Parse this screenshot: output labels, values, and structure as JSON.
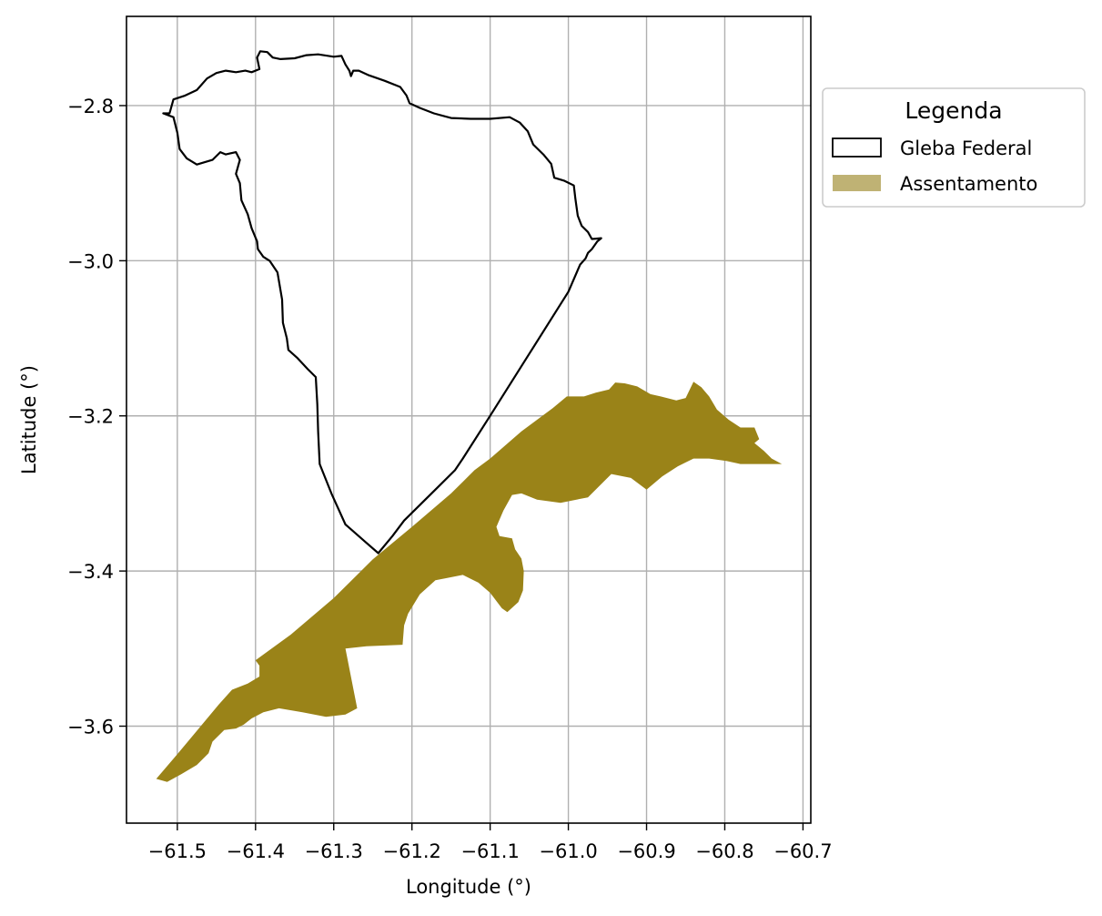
{
  "chart_data": {
    "type": "map",
    "xlabel": "Longitude (°)",
    "ylabel": "Latitude (°)",
    "xlim": [
      -61.565,
      -60.69
    ],
    "ylim": [
      -3.725,
      -2.685
    ],
    "x_ticks": [
      -61.5,
      -61.4,
      -61.3,
      -61.2,
      -61.1,
      -61.0,
      -60.9,
      -60.8,
      -60.7
    ],
    "x_tick_labels": [
      "−61.5",
      "−61.4",
      "−61.3",
      "−61.2",
      "−61.1",
      "−61.0",
      "−60.9",
      "−60.8",
      "−60.7"
    ],
    "y_ticks": [
      -2.8,
      -3.0,
      -3.2,
      -3.4,
      -3.6
    ],
    "y_tick_labels": [
      "−2.8",
      "−3.0",
      "−3.2",
      "−3.4",
      "−3.6"
    ],
    "grid": true,
    "legend": {
      "title": "Legenda",
      "position": "outside-right-top",
      "entries": [
        {
          "label": "Gleba Federal",
          "style": "outline",
          "edge_color": "#000000",
          "fill_color": "#ffffff"
        },
        {
          "label": "Assentamento",
          "style": "fill",
          "fill_color": "#bfb274"
        }
      ]
    },
    "colors": {
      "gleba_outline": "#000000",
      "assentamento_fill": "#9a8318",
      "grid": "#b0b0b0"
    },
    "series": [
      {
        "name": "Gleba Federal",
        "kind": "polygon-outline",
        "coords": [
          [
            -61.51,
            -2.81
          ],
          [
            -61.505,
            -2.792
          ],
          [
            -61.49,
            -2.787
          ],
          [
            -61.475,
            -2.78
          ],
          [
            -61.462,
            -2.765
          ],
          [
            -61.45,
            -2.758
          ],
          [
            -61.438,
            -2.755
          ],
          [
            -61.425,
            -2.757
          ],
          [
            -61.413,
            -2.755
          ],
          [
            -61.405,
            -2.757
          ],
          [
            -61.395,
            -2.753
          ],
          [
            -61.398,
            -2.738
          ],
          [
            -61.394,
            -2.73
          ],
          [
            -61.385,
            -2.731
          ],
          [
            -61.378,
            -2.738
          ],
          [
            -61.368,
            -2.74
          ],
          [
            -61.35,
            -2.739
          ],
          [
            -61.335,
            -2.735
          ],
          [
            -61.32,
            -2.734
          ],
          [
            -61.3,
            -2.737
          ],
          [
            -61.29,
            -2.736
          ],
          [
            -61.285,
            -2.747
          ],
          [
            -61.28,
            -2.755
          ],
          [
            -61.278,
            -2.762
          ],
          [
            -61.275,
            -2.755
          ],
          [
            -61.268,
            -2.755
          ],
          [
            -61.255,
            -2.761
          ],
          [
            -61.235,
            -2.768
          ],
          [
            -61.215,
            -2.776
          ],
          [
            -61.207,
            -2.787
          ],
          [
            -61.203,
            -2.797
          ],
          [
            -61.19,
            -2.803
          ],
          [
            -61.172,
            -2.81
          ],
          [
            -61.15,
            -2.816
          ],
          [
            -61.125,
            -2.817
          ],
          [
            -61.1,
            -2.817
          ],
          [
            -61.075,
            -2.815
          ],
          [
            -61.062,
            -2.822
          ],
          [
            -61.052,
            -2.833
          ],
          [
            -61.045,
            -2.85
          ],
          [
            -61.032,
            -2.863
          ],
          [
            -61.022,
            -2.875
          ],
          [
            -61.018,
            -2.893
          ],
          [
            -61.005,
            -2.897
          ],
          [
            -60.993,
            -2.903
          ],
          [
            -60.991,
            -2.92
          ],
          [
            -60.988,
            -2.942
          ],
          [
            -60.983,
            -2.955
          ],
          [
            -60.975,
            -2.963
          ],
          [
            -60.97,
            -2.972
          ],
          [
            -60.958,
            -2.971
          ],
          [
            -60.963,
            -2.975
          ],
          [
            -60.97,
            -2.985
          ],
          [
            -60.975,
            -2.99
          ],
          [
            -60.978,
            -2.997
          ],
          [
            -60.985,
            -3.005
          ],
          [
            -61.0,
            -3.04
          ],
          [
            -61.05,
            -3.12
          ],
          [
            -61.1,
            -3.2
          ],
          [
            -61.135,
            -3.255
          ],
          [
            -61.145,
            -3.27
          ],
          [
            -61.17,
            -3.295
          ],
          [
            -61.19,
            -3.315
          ],
          [
            -61.21,
            -3.335
          ],
          [
            -61.225,
            -3.355
          ],
          [
            -61.243,
            -3.377
          ],
          [
            -61.26,
            -3.362
          ],
          [
            -61.285,
            -3.34
          ],
          [
            -61.303,
            -3.3
          ],
          [
            -61.318,
            -3.262
          ],
          [
            -61.32,
            -3.22
          ],
          [
            -61.321,
            -3.185
          ],
          [
            -61.323,
            -3.15
          ],
          [
            -61.333,
            -3.14
          ],
          [
            -61.347,
            -3.125
          ],
          [
            -61.358,
            -3.115
          ],
          [
            -61.36,
            -3.1
          ],
          [
            -61.365,
            -3.08
          ],
          [
            -61.366,
            -3.05
          ],
          [
            -61.372,
            -3.015
          ],
          [
            -61.382,
            -3.0
          ],
          [
            -61.39,
            -2.995
          ],
          [
            -61.397,
            -2.985
          ],
          [
            -61.398,
            -2.975
          ],
          [
            -61.405,
            -2.958
          ],
          [
            -61.41,
            -2.94
          ],
          [
            -61.418,
            -2.922
          ],
          [
            -61.42,
            -2.9
          ],
          [
            -61.425,
            -2.888
          ],
          [
            -61.42,
            -2.87
          ],
          [
            -61.425,
            -2.86
          ],
          [
            -61.438,
            -2.863
          ],
          [
            -61.445,
            -2.86
          ],
          [
            -61.455,
            -2.87
          ],
          [
            -61.475,
            -2.876
          ],
          [
            -61.488,
            -2.868
          ],
          [
            -61.497,
            -2.856
          ],
          [
            -61.5,
            -2.835
          ],
          [
            -61.505,
            -2.815
          ],
          [
            -61.518,
            -2.81
          ],
          [
            -61.51,
            -2.81
          ]
        ]
      },
      {
        "name": "Assentamento",
        "kind": "polygon-fill",
        "coords": [
          [
            -61.527,
            -3.668
          ],
          [
            -61.5,
            -3.636
          ],
          [
            -61.47,
            -3.6
          ],
          [
            -61.447,
            -3.572
          ],
          [
            -61.43,
            -3.553
          ],
          [
            -61.41,
            -3.545
          ],
          [
            -61.395,
            -3.536
          ],
          [
            -61.395,
            -3.522
          ],
          [
            -61.4,
            -3.515
          ],
          [
            -61.355,
            -3.482
          ],
          [
            -61.3,
            -3.435
          ],
          [
            -61.25,
            -3.385
          ],
          [
            -61.2,
            -3.343
          ],
          [
            -61.15,
            -3.3
          ],
          [
            -61.12,
            -3.27
          ],
          [
            -61.1,
            -3.255
          ],
          [
            -61.06,
            -3.22
          ],
          [
            -61.02,
            -3.19
          ],
          [
            -61.002,
            -3.175
          ],
          [
            -60.98,
            -3.175
          ],
          [
            -60.965,
            -3.17
          ],
          [
            -60.948,
            -3.166
          ],
          [
            -60.94,
            -3.157
          ],
          [
            -60.928,
            -3.158
          ],
          [
            -60.912,
            -3.162
          ],
          [
            -60.895,
            -3.172
          ],
          [
            -60.882,
            -3.175
          ],
          [
            -60.862,
            -3.18
          ],
          [
            -60.85,
            -3.177
          ],
          [
            -60.84,
            -3.156
          ],
          [
            -60.83,
            -3.163
          ],
          [
            -60.82,
            -3.175
          ],
          [
            -60.81,
            -3.192
          ],
          [
            -60.795,
            -3.205
          ],
          [
            -60.78,
            -3.215
          ],
          [
            -60.762,
            -3.215
          ],
          [
            -60.756,
            -3.23
          ],
          [
            -60.762,
            -3.235
          ],
          [
            -60.75,
            -3.245
          ],
          [
            -60.74,
            -3.255
          ],
          [
            -60.727,
            -3.262
          ],
          [
            -60.75,
            -3.262
          ],
          [
            -60.78,
            -3.262
          ],
          [
            -60.798,
            -3.258
          ],
          [
            -60.82,
            -3.255
          ],
          [
            -60.84,
            -3.255
          ],
          [
            -60.86,
            -3.265
          ],
          [
            -60.88,
            -3.278
          ],
          [
            -60.9,
            -3.295
          ],
          [
            -60.92,
            -3.28
          ],
          [
            -60.945,
            -3.275
          ],
          [
            -60.96,
            -3.29
          ],
          [
            -60.975,
            -3.305
          ],
          [
            -61.01,
            -3.312
          ],
          [
            -61.04,
            -3.308
          ],
          [
            -61.06,
            -3.3
          ],
          [
            -61.072,
            -3.302
          ],
          [
            -61.083,
            -3.322
          ],
          [
            -61.092,
            -3.343
          ],
          [
            -61.088,
            -3.355
          ],
          [
            -61.072,
            -3.358
          ],
          [
            -61.068,
            -3.372
          ],
          [
            -61.06,
            -3.384
          ],
          [
            -61.057,
            -3.4
          ],
          [
            -61.058,
            -3.425
          ],
          [
            -61.064,
            -3.44
          ],
          [
            -61.078,
            -3.453
          ],
          [
            -61.085,
            -3.448
          ],
          [
            -61.1,
            -3.428
          ],
          [
            -61.115,
            -3.415
          ],
          [
            -61.135,
            -3.405
          ],
          [
            -61.17,
            -3.412
          ],
          [
            -61.19,
            -3.43
          ],
          [
            -61.205,
            -3.455
          ],
          [
            -61.21,
            -3.47
          ],
          [
            -61.212,
            -3.495
          ],
          [
            -61.258,
            -3.497
          ],
          [
            -61.285,
            -3.5
          ],
          [
            -61.27,
            -3.577
          ],
          [
            -61.285,
            -3.585
          ],
          [
            -61.31,
            -3.588
          ],
          [
            -61.34,
            -3.582
          ],
          [
            -61.37,
            -3.577
          ],
          [
            -61.39,
            -3.582
          ],
          [
            -61.405,
            -3.59
          ],
          [
            -61.415,
            -3.598
          ],
          [
            -61.425,
            -3.603
          ],
          [
            -61.44,
            -3.605
          ],
          [
            -61.455,
            -3.62
          ],
          [
            -61.46,
            -3.635
          ],
          [
            -61.475,
            -3.65
          ],
          [
            -61.495,
            -3.662
          ],
          [
            -61.513,
            -3.672
          ],
          [
            -61.527,
            -3.668
          ]
        ]
      }
    ]
  }
}
